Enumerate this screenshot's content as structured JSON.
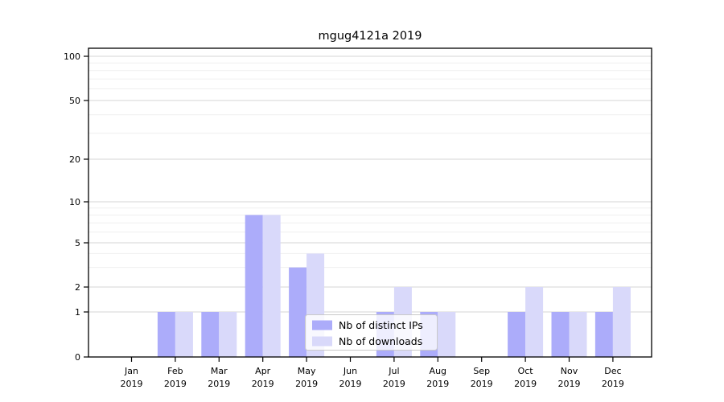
{
  "chart_data": {
    "type": "bar",
    "title": "mgug4121a 2019",
    "categories": [
      "Jan",
      "Feb",
      "Mar",
      "Apr",
      "May",
      "Jun",
      "Jul",
      "Aug",
      "Sep",
      "Oct",
      "Nov",
      "Dec"
    ],
    "year_label": "2019",
    "series": [
      {
        "name": "Nb of distinct IPs",
        "color": "#acacfa",
        "values": [
          0,
          1,
          1,
          8,
          3,
          0,
          1,
          1,
          0,
          1,
          1,
          1
        ]
      },
      {
        "name": "Nb of downloads",
        "color": "#d9d9fa",
        "values": [
          0,
          1,
          1,
          8,
          4,
          0,
          2,
          1,
          0,
          2,
          1,
          2
        ]
      }
    ],
    "y_ticks": [
      0,
      1,
      2,
      5,
      10,
      20,
      50,
      100
    ],
    "y_minor_gridlines": [
      3,
      4,
      6,
      7,
      8,
      9,
      30,
      40,
      60,
      70,
      80,
      90
    ],
    "y_scale": "log",
    "ylim": [
      0,
      113
    ],
    "xlabel": "",
    "ylabel": "",
    "grid": true,
    "legend_position": "lower center inside plot"
  },
  "colors": {
    "major_grid": "#d4d4d4",
    "minor_grid": "#efefef",
    "spine": "#000000",
    "background": "#ffffff",
    "text": "#000000",
    "legend_border": "#c9c9c9"
  }
}
